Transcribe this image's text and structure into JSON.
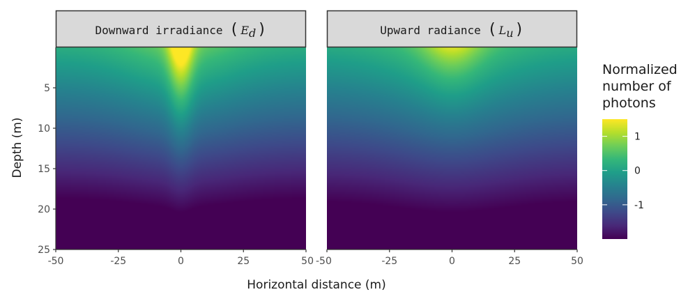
{
  "chart_data": {
    "type": "heatmap",
    "xlabel": "Horizontal distance (m)",
    "ylabel": "Depth (m)",
    "xlim": [
      -50,
      50
    ],
    "ylim": [
      0,
      25
    ],
    "x_ticks": [
      "-50",
      "-25",
      "0",
      "25",
      "50"
    ],
    "y_ticks": [
      "5",
      "10",
      "15",
      "20",
      "25"
    ],
    "y_tick_values": [
      5,
      10,
      15,
      20,
      25
    ],
    "y_reversed": true,
    "panels": [
      {
        "title": "Downward irradiance",
        "symbol": "E",
        "subscript": "d",
        "field": {
          "surface_value": 0.15,
          "depth_gradient": 0.115,
          "source_peak": 1.6,
          "source_width_m": 3.5,
          "source_decay_depth_m": 7,
          "broad_peak": 0.5,
          "broad_width_m": 18,
          "broad_decay_depth_m": 14
        }
      },
      {
        "title": "Upward radiance",
        "symbol": "L",
        "subscript": "u",
        "field": {
          "surface_value": 0.1,
          "depth_gradient": 0.11,
          "source_peak": 0.8,
          "source_width_m": 8,
          "source_decay_depth_m": 4,
          "broad_peak": 0.45,
          "broad_width_m": 20,
          "broad_decay_depth_m": 18
        }
      }
    ],
    "legend": {
      "title_lines": [
        "Normalized",
        "number of",
        "photons"
      ],
      "ticks": [
        {
          "label": "1",
          "value": 1
        },
        {
          "label": "0",
          "value": 0
        },
        {
          "label": "-1",
          "value": -1
        }
      ],
      "range": [
        -2.0,
        1.5
      ],
      "placement": "right"
    },
    "colormap": [
      "#440154",
      "#482878",
      "#3e4989",
      "#31688e",
      "#26828e",
      "#1f9e89",
      "#35b779",
      "#6ece58",
      "#b5de2b",
      "#fde725"
    ]
  }
}
